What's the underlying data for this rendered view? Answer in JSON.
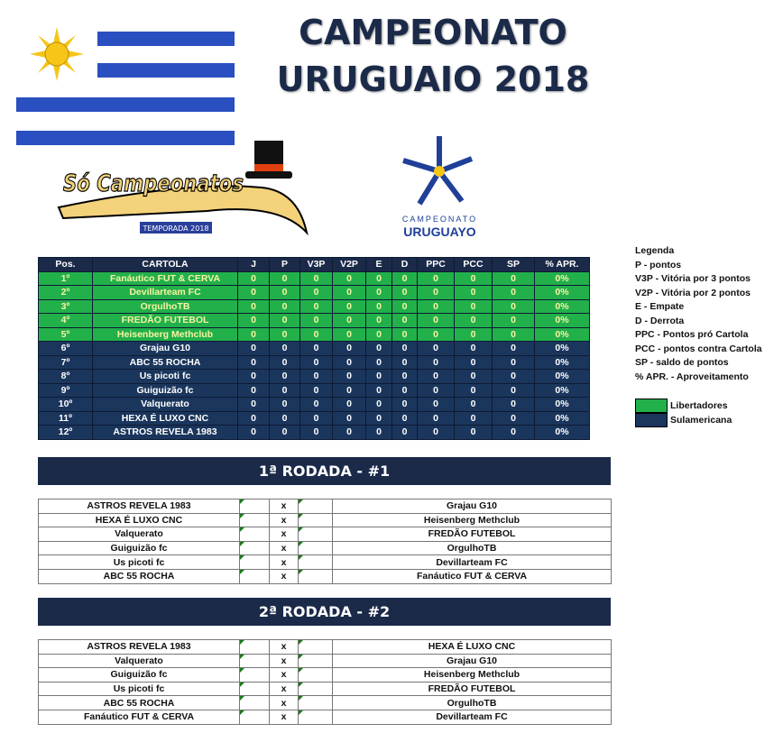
{
  "header": {
    "title_line1": "CAMPEONATO",
    "title_line2": "URUGUAIO 2018"
  },
  "logos": {
    "so_campeonatos": "Só Campeonatos",
    "so_campeonatos_badge": "TEMPORADA 2018",
    "uy_line1": "CAMPEONATO",
    "uy_line2": "URUGUAYO"
  },
  "standings": {
    "columns": [
      "Pos.",
      "CARTOLA",
      "J",
      "P",
      "V3P",
      "V2P",
      "E",
      "D",
      "PPC",
      "PCC",
      "SP",
      "% APR."
    ],
    "rows": [
      {
        "pos": "1º",
        "name": "Fanáutico FUT & CERVA",
        "zone": "lib",
        "stats": [
          "0",
          "0",
          "0",
          "0",
          "0",
          "0",
          "0",
          "0",
          "0",
          "0%"
        ]
      },
      {
        "pos": "2º",
        "name": "Devillarteam FC",
        "zone": "lib",
        "stats": [
          "0",
          "0",
          "0",
          "0",
          "0",
          "0",
          "0",
          "0",
          "0",
          "0%"
        ]
      },
      {
        "pos": "3º",
        "name": "OrgulhoTB",
        "zone": "lib",
        "stats": [
          "0",
          "0",
          "0",
          "0",
          "0",
          "0",
          "0",
          "0",
          "0",
          "0%"
        ]
      },
      {
        "pos": "4º",
        "name": "FREDÃO FUTEBOL",
        "zone": "lib",
        "stats": [
          "0",
          "0",
          "0",
          "0",
          "0",
          "0",
          "0",
          "0",
          "0",
          "0%"
        ]
      },
      {
        "pos": "5º",
        "name": "Heisenberg Methclub",
        "zone": "lib",
        "stats": [
          "0",
          "0",
          "0",
          "0",
          "0",
          "0",
          "0",
          "0",
          "0",
          "0%"
        ]
      },
      {
        "pos": "6º",
        "name": "Grajau G10",
        "zone": "sul",
        "stats": [
          "0",
          "0",
          "0",
          "0",
          "0",
          "0",
          "0",
          "0",
          "0",
          "0%"
        ]
      },
      {
        "pos": "7º",
        "name": "ABC 55 ROCHA",
        "zone": "sul",
        "stats": [
          "0",
          "0",
          "0",
          "0",
          "0",
          "0",
          "0",
          "0",
          "0",
          "0%"
        ]
      },
      {
        "pos": "8º",
        "name": "Us picoti fc",
        "zone": "sul",
        "stats": [
          "0",
          "0",
          "0",
          "0",
          "0",
          "0",
          "0",
          "0",
          "0",
          "0%"
        ]
      },
      {
        "pos": "9º",
        "name": "Guiguizão fc",
        "zone": "sul",
        "stats": [
          "0",
          "0",
          "0",
          "0",
          "0",
          "0",
          "0",
          "0",
          "0",
          "0%"
        ]
      },
      {
        "pos": "10º",
        "name": "Valquerato",
        "zone": "sul",
        "stats": [
          "0",
          "0",
          "0",
          "0",
          "0",
          "0",
          "0",
          "0",
          "0",
          "0%"
        ]
      },
      {
        "pos": "11º",
        "name": "HEXA É LUXO CNC",
        "zone": "sul",
        "stats": [
          "0",
          "0",
          "0",
          "0",
          "0",
          "0",
          "0",
          "0",
          "0",
          "0%"
        ]
      },
      {
        "pos": "12º",
        "name": "ASTROS REVELA 1983",
        "zone": "sul",
        "stats": [
          "0",
          "0",
          "0",
          "0",
          "0",
          "0",
          "0",
          "0",
          "0",
          "0%"
        ]
      }
    ]
  },
  "legend": {
    "title": "Legenda",
    "items": [
      "P - pontos",
      "V3P - Vitória por 3 pontos",
      "V2P - Vitória por 2 pontos",
      "E - Empate",
      "D - Derrota",
      "PPC - Pontos pró Cartola",
      "PCC - pontos contra Cartola",
      "SP - saldo de pontos",
      "% APR. - Aproveitamento"
    ],
    "zones": [
      {
        "label": "Libertadores",
        "color": "#22b04b"
      },
      {
        "label": "Sulamericana",
        "color": "#1b365d"
      }
    ]
  },
  "rounds": [
    {
      "title": "1ª RODADA - #1",
      "vs": "x",
      "matches": [
        [
          "ASTROS REVELA 1983",
          "Grajau G10"
        ],
        [
          "HEXA É LUXO CNC",
          "Heisenberg Methclub"
        ],
        [
          "Valquerato",
          "FREDÃO FUTEBOL"
        ],
        [
          "Guiguizão fc",
          "OrgulhoTB"
        ],
        [
          "Us picoti fc",
          "Devillarteam FC"
        ],
        [
          "ABC 55 ROCHA",
          "Fanáutico FUT & CERVA"
        ]
      ]
    },
    {
      "title": "2ª RODADA - #2",
      "vs": "x",
      "matches": [
        [
          "ASTROS REVELA 1983",
          "HEXA É LUXO CNC"
        ],
        [
          "Valquerato",
          "Grajau G10"
        ],
        [
          "Guiguizão fc",
          "Heisenberg Methclub"
        ],
        [
          "Us picoti fc",
          "FREDÃO FUTEBOL"
        ],
        [
          "ABC 55 ROCHA",
          "OrgulhoTB"
        ],
        [
          "Fanáutico FUT & CERVA",
          "Devillarteam FC"
        ]
      ]
    }
  ]
}
